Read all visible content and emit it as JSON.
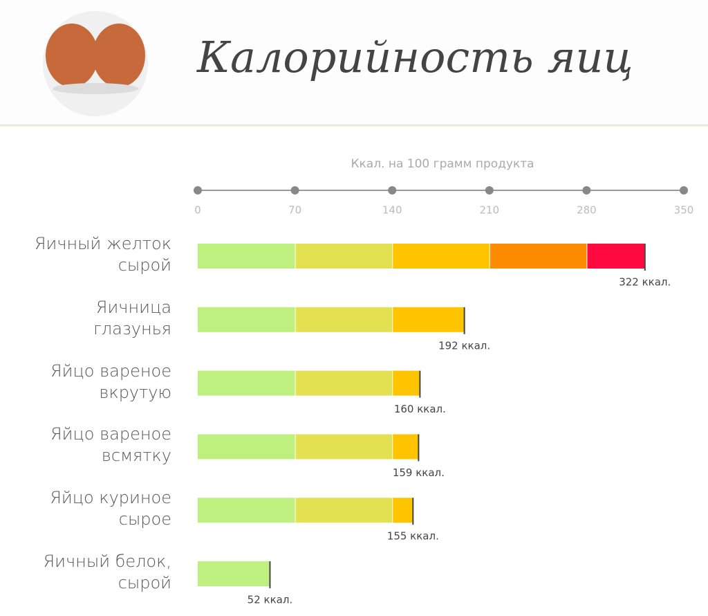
{
  "chart_data": {
    "type": "bar",
    "orientation": "horizontal",
    "title": "Калорийность яиц",
    "x_label": "Ккал. на 100 грамм продукта",
    "categories": [
      "Яичный желток\nсырой",
      "Яичница\nглазунья",
      "Яйцо вареное\nвкрутую",
      "Яйцо вареное\nвсмятку",
      "Яйцо куриное\nсырое",
      "Яичный белок,\nсырой"
    ],
    "values": [
      322,
      192,
      160,
      159,
      155,
      52
    ],
    "value_labels": [
      "322 ккал.",
      "192 ккал.",
      "160 ккал.",
      "159 ккал.",
      "155 ккал.",
      "52 ккал."
    ],
    "xlim": [
      0,
      350
    ],
    "xticks": [
      0,
      70,
      140,
      210,
      280,
      350
    ],
    "zone_colors": [
      "#bdf07e",
      "#e3e052",
      "#ffc400",
      "#ff8c00",
      "#ff0a40"
    ]
  }
}
